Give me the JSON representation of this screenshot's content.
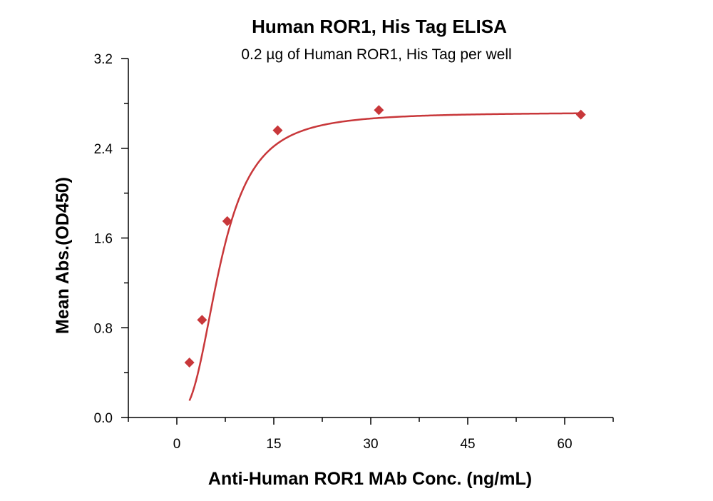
{
  "chart_data": {
    "type": "scatter",
    "title": "Human ROR1, His Tag ELISA",
    "subtitle": "0.2 µg of Human ROR1, His Tag per well",
    "xlabel": "Anti-Human ROR1 MAb Conc. (ng/mL)",
    "ylabel": "Mean Abs.(OD450)",
    "xlim": [
      -7.5,
      67.5
    ],
    "ylim": [
      0,
      3.2
    ],
    "x_ticks": [
      0,
      15,
      30,
      45,
      60
    ],
    "x_tick_labels": [
      "0",
      "15",
      "30",
      "45",
      "60"
    ],
    "x_minor_ticks": [
      -7.5,
      7.5,
      22.5,
      37.5,
      52.5,
      67.5
    ],
    "y_ticks": [
      0,
      0.8,
      1.6,
      2.4,
      3.2
    ],
    "y_tick_labels": [
      "0.0",
      "0.8",
      "1.6",
      "2.4",
      "3.2"
    ],
    "y_minor_ticks": [
      0.4,
      1.2,
      2.0,
      2.8
    ],
    "grid": false,
    "series": [
      {
        "marker": "diamond",
        "color": "#c8373a",
        "points": [
          {
            "x": 1.95,
            "y": 0.49
          },
          {
            "x": 3.9,
            "y": 0.87
          },
          {
            "x": 7.8,
            "y": 1.75
          },
          {
            "x": 15.6,
            "y": 2.56
          },
          {
            "x": 31.25,
            "y": 2.74
          },
          {
            "x": 62.5,
            "y": 2.7
          }
        ],
        "fit": {
          "type": "4PL",
          "bottom": 0.05,
          "top": 2.72,
          "ec50": 6.8,
          "hill": 2.6
        }
      }
    ]
  }
}
